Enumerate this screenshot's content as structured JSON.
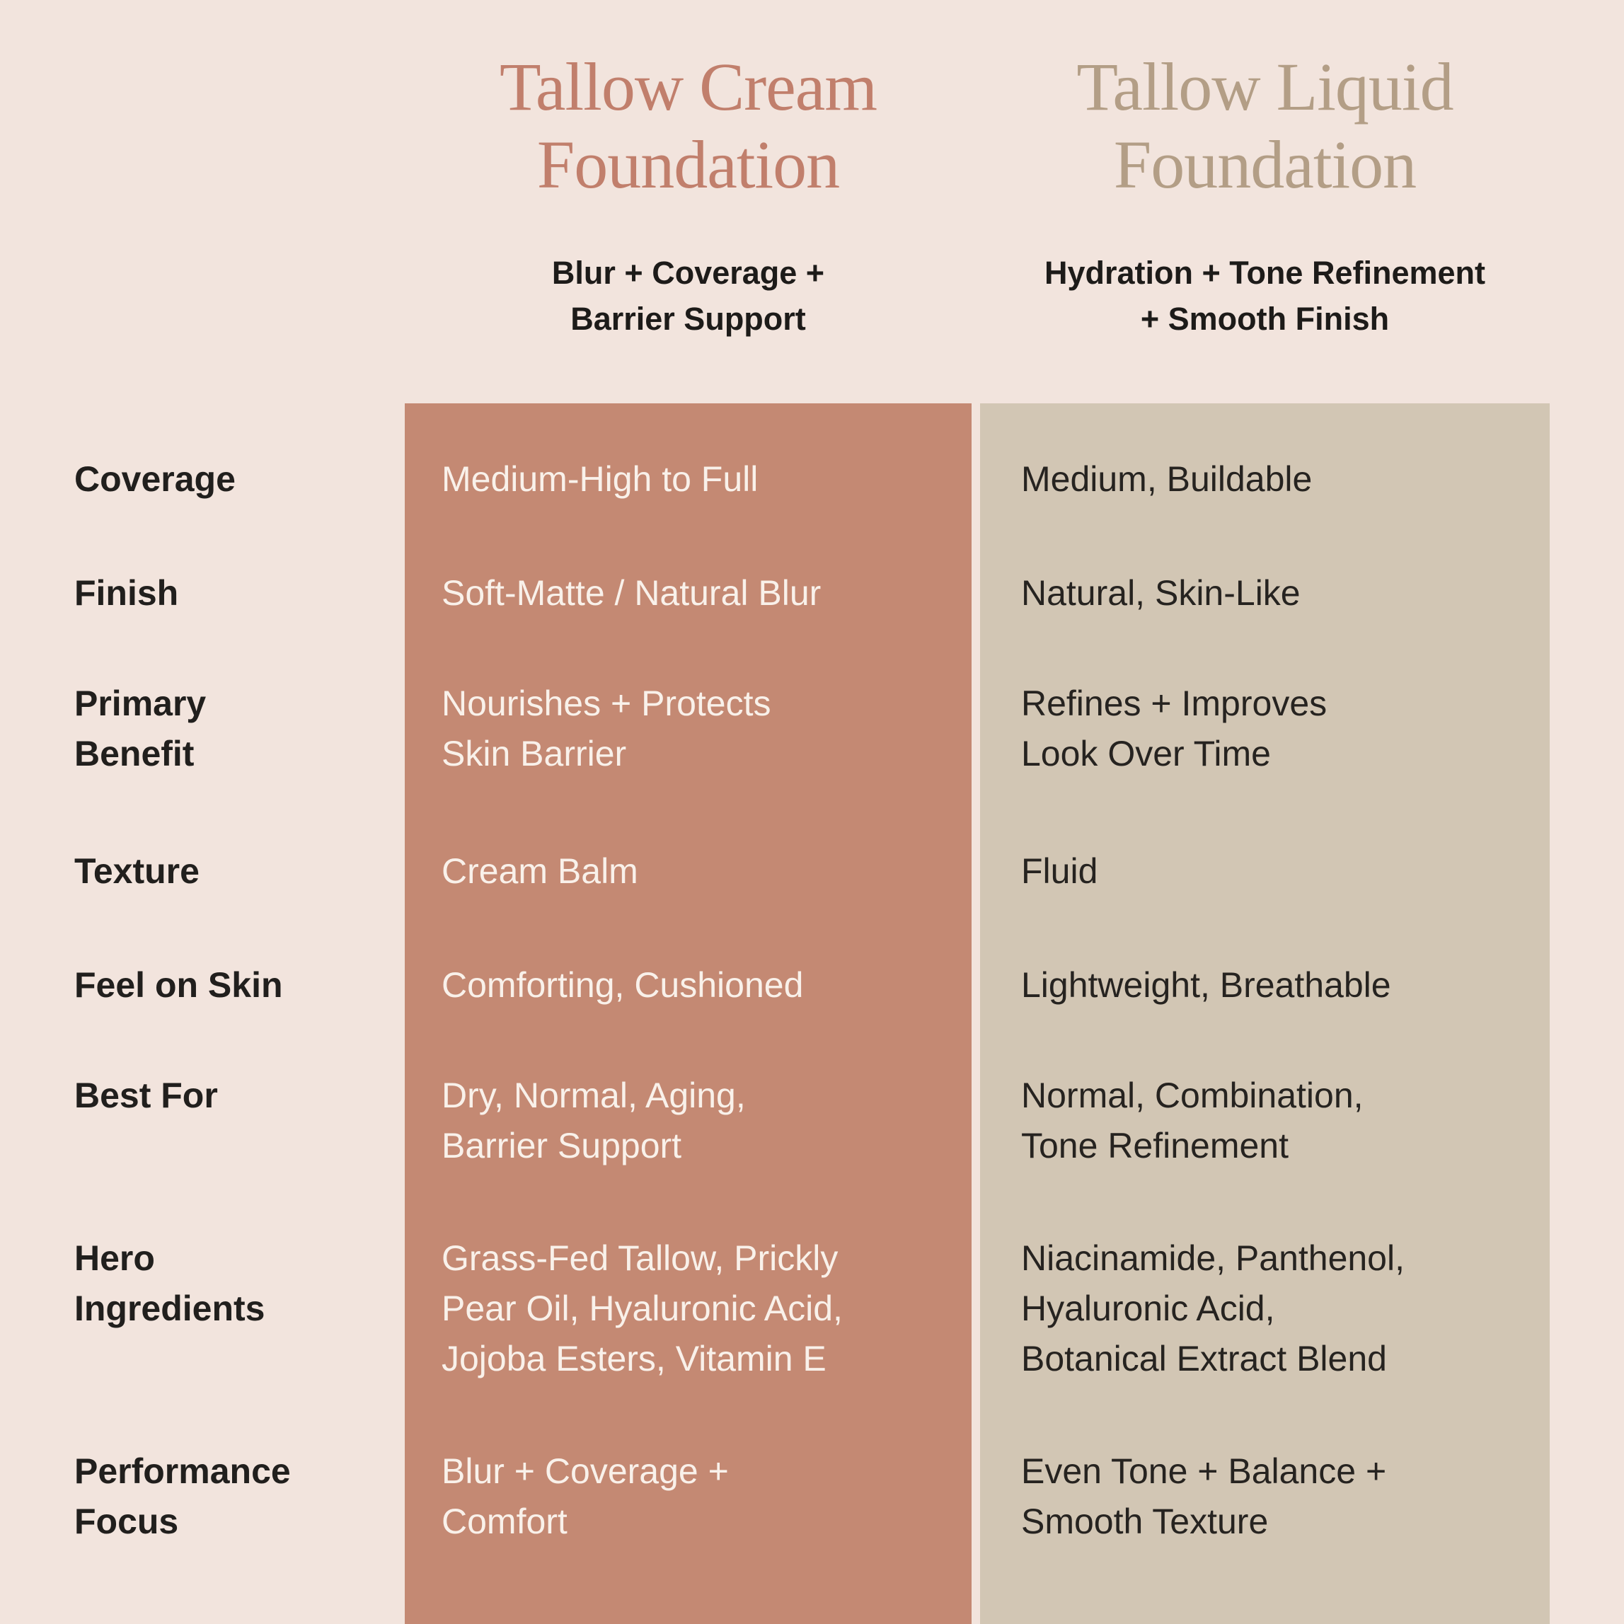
{
  "colors": {
    "background": "#f2e4dd",
    "cream_panel": "#c48973",
    "cream_title": "#c17f6c",
    "cream_value_text": "#f9f1ea",
    "liquid_panel": "#d2c6b4",
    "liquid_title": "#b39e86",
    "label_text": "#211f1d",
    "liquid_value_text": "#262320"
  },
  "chart_data": {
    "type": "table",
    "title": "Tallow Cream Foundation vs Tallow Liquid Foundation",
    "legend_position": "top",
    "columns": [
      {
        "title": "Tallow Cream\nFoundation",
        "subtitle": "Blur + Coverage +\nBarrier Support"
      },
      {
        "title": "Tallow Liquid\nFoundation",
        "subtitle": "Hydration + Tone Refinement\n+ Smooth Finish"
      }
    ],
    "rows": [
      {
        "label": "Coverage",
        "cream": "Medium-High to Full",
        "liquid": "Medium, Buildable"
      },
      {
        "label": "Finish",
        "cream": "Soft-Matte / Natural Blur",
        "liquid": "Natural, Skin-Like"
      },
      {
        "label": "Primary\nBenefit",
        "cream": "Nourishes + Protects\nSkin Barrier",
        "liquid": "Refines + Improves\nLook Over Time"
      },
      {
        "label": "Texture",
        "cream": "Cream Balm",
        "liquid": "Fluid"
      },
      {
        "label": "Feel on Skin",
        "cream": "Comforting, Cushioned",
        "liquid": "Lightweight, Breathable"
      },
      {
        "label": "Best For",
        "cream": "Dry, Normal, Aging,\nBarrier Support",
        "liquid": "Normal, Combination,\nTone Refinement"
      },
      {
        "label": "Hero\nIngredients",
        "cream": "Grass-Fed Tallow, Prickly\nPear Oil, Hyaluronic Acid,\nJojoba Esters, Vitamin E",
        "liquid": "Niacinamide, Panthenol,\nHyaluronic Acid,\nBotanical Extract Blend"
      },
      {
        "label": "Performance\nFocus",
        "cream": "Blur + Coverage +\nComfort",
        "liquid": "Even Tone + Balance +\nSmooth Texture"
      }
    ]
  }
}
